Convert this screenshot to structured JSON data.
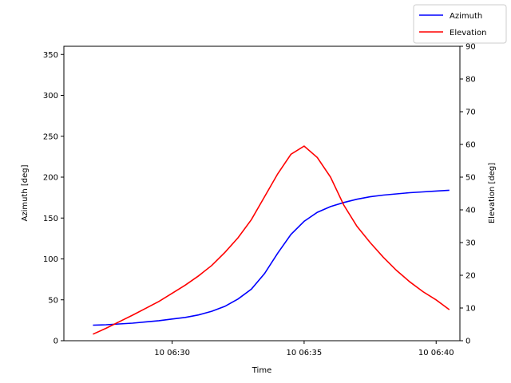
{
  "chart_data": {
    "type": "line",
    "xlabel": "Time",
    "ylabel_left": "Azimuth [deg]",
    "ylabel_right": "Elevation [deg]",
    "x_minutes_offset_origin_label": "10 06:26:30",
    "xlim_minutes": [
      -0.6,
      14.4
    ],
    "x_tick_labels": [
      "10 06:30",
      "10 06:35",
      "10 06:40"
    ],
    "x_tick_minutes": [
      3.5,
      8.5,
      13.5
    ],
    "ylim_left": [
      0,
      360
    ],
    "yticks_left": [
      0,
      50,
      100,
      150,
      200,
      250,
      300,
      350
    ],
    "ylim_right": [
      0,
      90
    ],
    "yticks_right": [
      0,
      10,
      20,
      30,
      40,
      50,
      60,
      70,
      80,
      90
    ],
    "grid": false,
    "legend_position": "top-right",
    "series": [
      {
        "name": "Azimuth",
        "axis": "left",
        "color": "#0000ff",
        "x": [
          0.5,
          1.0,
          1.5,
          2.0,
          2.5,
          3.0,
          3.5,
          4.0,
          4.5,
          5.0,
          5.5,
          6.0,
          6.5,
          7.0,
          7.5,
          8.0,
          8.5,
          9.0,
          9.5,
          10.0,
          10.5,
          11.0,
          11.5,
          12.0,
          12.5,
          13.0,
          13.5,
          14.0
        ],
        "values": [
          19,
          19.5,
          20.5,
          21.5,
          23,
          24.5,
          26.5,
          28.5,
          31.5,
          36,
          42,
          51,
          63,
          82,
          107,
          130,
          146,
          157,
          164,
          169,
          173,
          176,
          178,
          179.5,
          181,
          182,
          183,
          184
        ]
      },
      {
        "name": "Elevation",
        "axis": "right",
        "color": "#ff0000",
        "x": [
          0.5,
          1.0,
          1.5,
          2.0,
          2.5,
          3.0,
          3.5,
          4.0,
          4.5,
          5.0,
          5.5,
          6.0,
          6.5,
          7.0,
          7.5,
          8.0,
          8.5,
          9.0,
          9.5,
          10.0,
          10.5,
          11.0,
          11.5,
          12.0,
          12.5,
          13.0,
          13.5,
          14.0
        ],
        "values": [
          2,
          3.8,
          5.8,
          7.8,
          9.9,
          12,
          14.5,
          17,
          19.8,
          23,
          27,
          31.5,
          37,
          44,
          51,
          57,
          59.5,
          56,
          50,
          41.5,
          35,
          30,
          25.5,
          21.5,
          18,
          15,
          12.5,
          9.5
        ]
      }
    ]
  }
}
